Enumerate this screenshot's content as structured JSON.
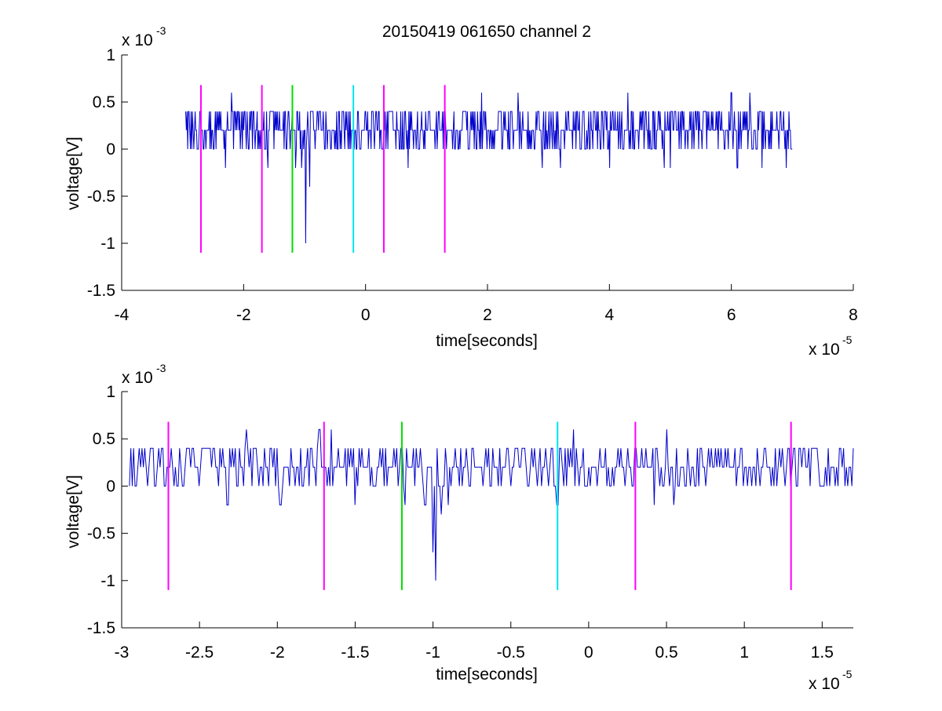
{
  "figure": {
    "title": "20150419 061650 channel 2"
  },
  "chart_data": [
    {
      "type": "line",
      "xlabel": "time[seconds]",
      "ylabel": "voltage[V]",
      "x_exponent_label": "x 10",
      "x_exponent": "-5",
      "y_exponent_label": "x 10",
      "y_exponent": "-3",
      "xlim": [
        -4,
        8
      ],
      "ylim": [
        -1.5,
        1
      ],
      "xticks": [
        "-4",
        "-2",
        "0",
        "2",
        "4",
        "6",
        "8"
      ],
      "yticks": [
        "1",
        "0.5",
        "0",
        "-0.5",
        "-1",
        "-1.5"
      ],
      "xtick_values": [
        -4,
        -2,
        0,
        2,
        4,
        6,
        8
      ],
      "ytick_values": [
        1,
        0.5,
        0,
        -0.5,
        -1,
        -1.5
      ],
      "signal": {
        "color": "#0000cc",
        "x_range": [
          -2.95,
          7.0
        ],
        "baseline": 0.2,
        "levels": [
          0,
          0.2,
          0.4
        ],
        "dips": [
          {
            "x": -0.98,
            "y": -1.0
          },
          {
            "x": -1.05,
            "y": -0.7
          },
          {
            "x": -0.92,
            "y": -0.4
          },
          {
            "x": -1.15,
            "y": -0.2
          }
        ],
        "spikes_low": [
          -2.3,
          -1.6,
          -1.05,
          0.7,
          2.9,
          3.2,
          4.0,
          4.9,
          5.0,
          6.1,
          6.5,
          6.9
        ],
        "spikes_high": [
          -2.2,
          1.9,
          2.5,
          4.3,
          6.0,
          6.3
        ]
      },
      "markers": [
        {
          "x": -2.7,
          "color": "#ff00ff"
        },
        {
          "x": -1.7,
          "color": "#ff00ff"
        },
        {
          "x": -1.2,
          "color": "#00dd00"
        },
        {
          "x": -0.2,
          "color": "#00e5ee"
        },
        {
          "x": 0.3,
          "color": "#ff00ff"
        },
        {
          "x": 1.3,
          "color": "#ff00ff"
        }
      ],
      "marker_range": [
        -1.1,
        0.68
      ]
    },
    {
      "type": "line",
      "xlabel": "time[seconds]",
      "ylabel": "voltage[V]",
      "x_exponent_label": "x 10",
      "x_exponent": "-5",
      "y_exponent_label": "x 10",
      "y_exponent": "-3",
      "xlim": [
        -3.0,
        1.7
      ],
      "ylim": [
        -1.5,
        1
      ],
      "xticks": [
        "-3",
        "-2.5",
        "-2",
        "-1.5",
        "-1",
        "-0.5",
        "0",
        "0.5",
        "1",
        "1.5"
      ],
      "yticks": [
        "1",
        "0.5",
        "0",
        "-0.5",
        "-1",
        "-1.5"
      ],
      "xtick_values": [
        -3,
        -2.5,
        -2,
        -1.5,
        -1,
        -0.5,
        0,
        0.5,
        1,
        1.5
      ],
      "ytick_values": [
        1,
        0.5,
        0,
        -0.5,
        -1,
        -1.5
      ],
      "signal": {
        "color": "#0000cc",
        "x_range": [
          -2.95,
          1.7
        ],
        "baseline": 0.2,
        "levels": [
          0,
          0.2,
          0.4
        ],
        "dips": [
          {
            "x": -0.98,
            "y": -1.0
          },
          {
            "x": -1.0,
            "y": -0.7
          },
          {
            "x": -0.95,
            "y": -0.3
          },
          {
            "x": -1.05,
            "y": -0.2
          }
        ],
        "spikes_low": [
          -2.32,
          -1.98,
          -1.5,
          -1.18,
          -0.9,
          -0.2,
          -0.1,
          0.42,
          0.55
        ],
        "spikes_high": [
          -2.2,
          -1.73,
          -1.65,
          -0.1,
          0.5
        ]
      },
      "markers": [
        {
          "x": -2.7,
          "color": "#ff00ff"
        },
        {
          "x": -1.7,
          "color": "#ff00ff"
        },
        {
          "x": -1.2,
          "color": "#00dd00"
        },
        {
          "x": -0.2,
          "color": "#00e5ee"
        },
        {
          "x": 0.3,
          "color": "#ff00ff"
        },
        {
          "x": 1.3,
          "color": "#ff00ff"
        }
      ],
      "marker_range": [
        -1.1,
        0.68
      ]
    }
  ]
}
